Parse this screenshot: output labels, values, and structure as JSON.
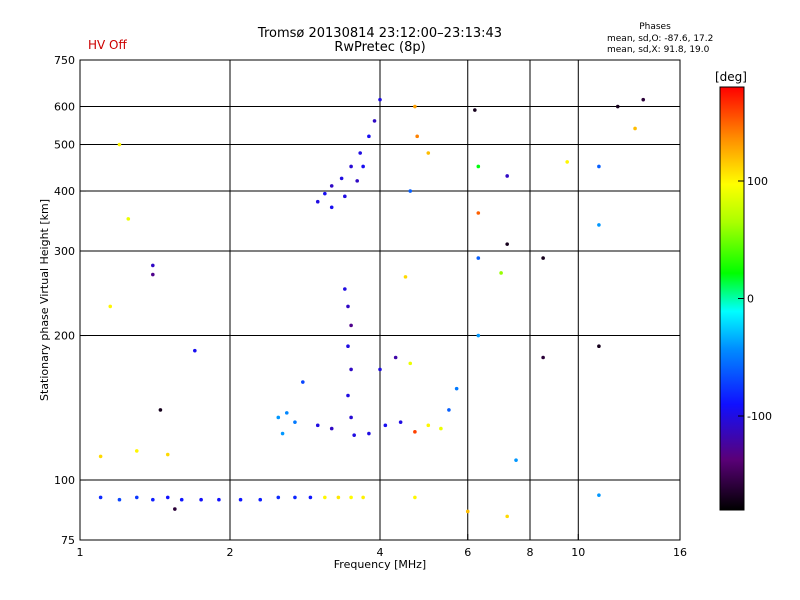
{
  "header": {
    "title": "Tromsø 20130814 23:12:00–23:13:43",
    "subtitle": "RwPretec (8p)",
    "hv_status": "HV Off",
    "hv_color": "#cc0000"
  },
  "phases_box": {
    "title": "Phases",
    "line1": "mean, sd,O: -87.6, 17.2",
    "line2": "mean, sd,X:  91.8, 19.0"
  },
  "colorbar": {
    "title": "[deg]",
    "range": [
      -180,
      180
    ],
    "tick_labels": [
      "100",
      "0",
      "-100"
    ],
    "tick_values": [
      100,
      0,
      -100
    ]
  },
  "chart_data": {
    "type": "scatter",
    "title": "Tromsø 20130814 23:12:00–23:13:43",
    "subtitle": "RwPretec (8p)",
    "xlabel": "Frequency [MHz]",
    "ylabel": "Stationary phase Virtual Height [km]",
    "xscale": "log",
    "yscale": "log",
    "xlim": [
      1,
      16
    ],
    "ylim": [
      75,
      750
    ],
    "x_ticks": [
      1,
      2,
      4,
      6,
      8,
      10,
      16
    ],
    "x_tick_labels": [
      "1",
      "2",
      "4",
      "6",
      "8",
      "10",
      "16"
    ],
    "y_ticks": [
      75,
      100,
      200,
      300,
      400,
      500,
      600,
      750
    ],
    "y_tick_labels": [
      "75",
      "100",
      "200",
      "300",
      "400",
      "500",
      "600",
      "750"
    ],
    "grid": true,
    "color_dimension": "phase (deg)",
    "points": [
      {
        "x": 1.1,
        "y": 92,
        "phase": -80
      },
      {
        "x": 1.2,
        "y": 91,
        "phase": -70
      },
      {
        "x": 1.3,
        "y": 92,
        "phase": -75
      },
      {
        "x": 1.4,
        "y": 91,
        "phase": -85
      },
      {
        "x": 1.5,
        "y": 92,
        "phase": -90
      },
      {
        "x": 1.6,
        "y": 91,
        "phase": -88
      },
      {
        "x": 1.75,
        "y": 91,
        "phase": -92
      },
      {
        "x": 1.9,
        "y": 91,
        "phase": -90
      },
      {
        "x": 2.1,
        "y": 91,
        "phase": -88
      },
      {
        "x": 2.3,
        "y": 91,
        "phase": -85
      },
      {
        "x": 2.5,
        "y": 92,
        "phase": -80
      },
      {
        "x": 2.7,
        "y": 92,
        "phase": -82
      },
      {
        "x": 2.9,
        "y": 92,
        "phase": -88
      },
      {
        "x": 3.1,
        "y": 92,
        "phase": 100
      },
      {
        "x": 3.3,
        "y": 92,
        "phase": 105
      },
      {
        "x": 3.5,
        "y": 92,
        "phase": 98
      },
      {
        "x": 3.7,
        "y": 92,
        "phase": 102
      },
      {
        "x": 1.55,
        "y": 87,
        "phase": -160
      },
      {
        "x": 1.7,
        "y": 186,
        "phase": -95
      },
      {
        "x": 1.45,
        "y": 140,
        "phase": -170
      },
      {
        "x": 1.4,
        "y": 280,
        "phase": -110
      },
      {
        "x": 1.4,
        "y": 268,
        "phase": -130
      },
      {
        "x": 1.2,
        "y": 500,
        "phase": 100
      },
      {
        "x": 1.25,
        "y": 350,
        "phase": 90
      },
      {
        "x": 1.15,
        "y": 230,
        "phase": 100
      },
      {
        "x": 2.5,
        "y": 135,
        "phase": -40
      },
      {
        "x": 2.6,
        "y": 138,
        "phase": -45
      },
      {
        "x": 2.7,
        "y": 132,
        "phase": -50
      },
      {
        "x": 2.55,
        "y": 125,
        "phase": -40
      },
      {
        "x": 2.8,
        "y": 160,
        "phase": -70
      },
      {
        "x": 3.0,
        "y": 380,
        "phase": -100
      },
      {
        "x": 3.1,
        "y": 395,
        "phase": -95
      },
      {
        "x": 3.2,
        "y": 410,
        "phase": -110
      },
      {
        "x": 3.35,
        "y": 425,
        "phase": -100
      },
      {
        "x": 3.5,
        "y": 450,
        "phase": -105
      },
      {
        "x": 3.65,
        "y": 480,
        "phase": -100
      },
      {
        "x": 3.8,
        "y": 520,
        "phase": -95
      },
      {
        "x": 3.9,
        "y": 560,
        "phase": -110
      },
      {
        "x": 4.0,
        "y": 620,
        "phase": -100
      },
      {
        "x": 3.2,
        "y": 370,
        "phase": -95
      },
      {
        "x": 3.4,
        "y": 390,
        "phase": -100
      },
      {
        "x": 3.6,
        "y": 420,
        "phase": -110
      },
      {
        "x": 3.7,
        "y": 450,
        "phase": -95
      },
      {
        "x": 3.4,
        "y": 250,
        "phase": -100
      },
      {
        "x": 3.45,
        "y": 230,
        "phase": -110
      },
      {
        "x": 3.5,
        "y": 210,
        "phase": -130
      },
      {
        "x": 3.45,
        "y": 190,
        "phase": -100
      },
      {
        "x": 3.5,
        "y": 170,
        "phase": -110
      },
      {
        "x": 3.45,
        "y": 150,
        "phase": -100
      },
      {
        "x": 3.5,
        "y": 135,
        "phase": -105
      },
      {
        "x": 3.55,
        "y": 124,
        "phase": -100
      },
      {
        "x": 3.0,
        "y": 130,
        "phase": -100
      },
      {
        "x": 3.2,
        "y": 128,
        "phase": -110
      },
      {
        "x": 3.8,
        "y": 125,
        "phase": -100
      },
      {
        "x": 4.1,
        "y": 130,
        "phase": -95
      },
      {
        "x": 4.4,
        "y": 132,
        "phase": -100
      },
      {
        "x": 4.7,
        "y": 126,
        "phase": 160
      },
      {
        "x": 5.0,
        "y": 130,
        "phase": 100
      },
      {
        "x": 5.3,
        "y": 128,
        "phase": 90
      },
      {
        "x": 5.5,
        "y": 140,
        "phase": -60
      },
      {
        "x": 5.7,
        "y": 155,
        "phase": -50
      },
      {
        "x": 4.0,
        "y": 170,
        "phase": -100
      },
      {
        "x": 4.3,
        "y": 180,
        "phase": -120
      },
      {
        "x": 4.6,
        "y": 175,
        "phase": 90
      },
      {
        "x": 4.7,
        "y": 600,
        "phase": 130
      },
      {
        "x": 4.75,
        "y": 520,
        "phase": 140
      },
      {
        "x": 5.0,
        "y": 480,
        "phase": 120
      },
      {
        "x": 4.6,
        "y": 400,
        "phase": -60
      },
      {
        "x": 4.5,
        "y": 265,
        "phase": 110
      },
      {
        "x": 6.2,
        "y": 590,
        "phase": -170
      },
      {
        "x": 6.3,
        "y": 450,
        "phase": 20
      },
      {
        "x": 6.3,
        "y": 360,
        "phase": 150
      },
      {
        "x": 6.3,
        "y": 290,
        "phase": -60
      },
      {
        "x": 6.3,
        "y": 200,
        "phase": -40
      },
      {
        "x": 7.2,
        "y": 310,
        "phase": -170
      },
      {
        "x": 7.2,
        "y": 430,
        "phase": -110
      },
      {
        "x": 7.0,
        "y": 270,
        "phase": 60
      },
      {
        "x": 7.5,
        "y": 110,
        "phase": -40
      },
      {
        "x": 8.5,
        "y": 290,
        "phase": -170
      },
      {
        "x": 8.5,
        "y": 180,
        "phase": -160
      },
      {
        "x": 9.5,
        "y": 460,
        "phase": 100
      },
      {
        "x": 11.0,
        "y": 450,
        "phase": -60
      },
      {
        "x": 11.0,
        "y": 340,
        "phase": -40
      },
      {
        "x": 11.0,
        "y": 190,
        "phase": -170
      },
      {
        "x": 11.0,
        "y": 93,
        "phase": -40
      },
      {
        "x": 12.0,
        "y": 600,
        "phase": -170
      },
      {
        "x": 13.0,
        "y": 540,
        "phase": 120
      },
      {
        "x": 13.5,
        "y": 620,
        "phase": -160
      },
      {
        "x": 7.2,
        "y": 84,
        "phase": 110
      },
      {
        "x": 6.0,
        "y": 86,
        "phase": 120
      },
      {
        "x": 4.7,
        "y": 92,
        "phase": 100
      },
      {
        "x": 1.1,
        "y": 112,
        "phase": 110
      },
      {
        "x": 1.3,
        "y": 115,
        "phase": 100
      },
      {
        "x": 1.5,
        "y": 113,
        "phase": 110
      }
    ]
  }
}
